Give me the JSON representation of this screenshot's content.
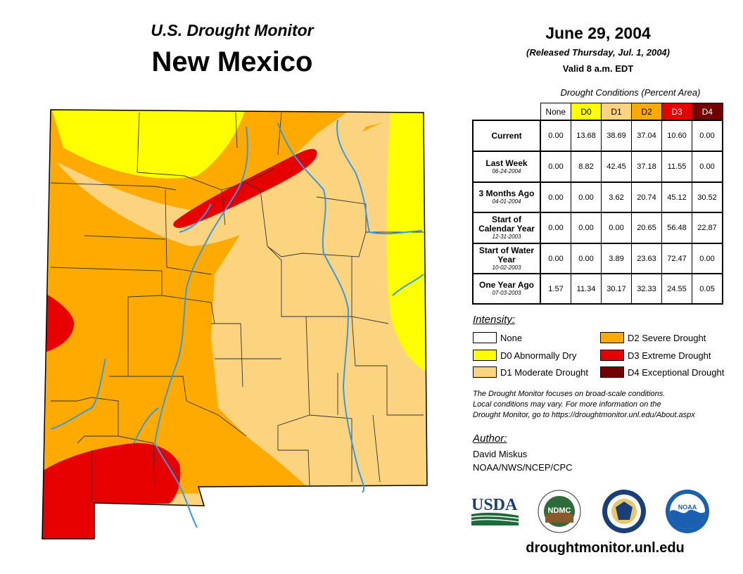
{
  "header": {
    "subtitle": "U.S. Drought Monitor",
    "state": "New Mexico",
    "date": "June 29, 2004",
    "released": "(Released Thursday, Jul. 1, 2004)",
    "valid": "Valid 8 a.m. EDT"
  },
  "table": {
    "caption": "Drought Conditions (Percent Area)",
    "columns": [
      {
        "label": "None",
        "color": "#ffffff",
        "text_color": "#000000"
      },
      {
        "label": "D0",
        "color": "#ffff00",
        "text_color": "#000000"
      },
      {
        "label": "D1",
        "color": "#fcd37f",
        "text_color": "#000000"
      },
      {
        "label": "D2",
        "color": "#ffaa00",
        "text_color": "#000000"
      },
      {
        "label": "D3",
        "color": "#e60000",
        "text_color": "#ffffff"
      },
      {
        "label": "D4",
        "color": "#730000",
        "text_color": "#ffffff"
      }
    ],
    "rows": [
      {
        "label": "Current",
        "date": "",
        "values": [
          "0.00",
          "13.68",
          "38.69",
          "37.04",
          "10.60",
          "0.00"
        ]
      },
      {
        "label": "Last Week",
        "date": "06-24-2004",
        "values": [
          "0.00",
          "8.82",
          "42.45",
          "37.18",
          "11.55",
          "0.00"
        ]
      },
      {
        "label": "3 Months Ago",
        "date": "04-01-2004",
        "values": [
          "0.00",
          "0.00",
          "3.62",
          "20.74",
          "45.12",
          "30.52"
        ]
      },
      {
        "label": "Start of Calendar Year",
        "date": "12-31-2003",
        "values": [
          "0.00",
          "0.00",
          "0.00",
          "20.65",
          "56.48",
          "22.87"
        ]
      },
      {
        "label": "Start of Water Year",
        "date": "10-02-2003",
        "values": [
          "0.00",
          "0.00",
          "3.89",
          "23.63",
          "72.47",
          "0.00"
        ]
      },
      {
        "label": "One Year Ago",
        "date": "07-03-2003",
        "values": [
          "1.57",
          "11.34",
          "30.17",
          "32.33",
          "24.55",
          "0.05"
        ]
      }
    ]
  },
  "legend": {
    "title": "Intensity:",
    "items": [
      {
        "label": "None",
        "color": "#ffffff"
      },
      {
        "label": "D0 Abnormally Dry",
        "color": "#ffff00"
      },
      {
        "label": "D1 Moderate Drought",
        "color": "#fcd37f"
      },
      {
        "label": "D2 Severe Drought",
        "color": "#ffaa00"
      },
      {
        "label": "D3 Extreme Drought",
        "color": "#e60000"
      },
      {
        "label": "D4 Exceptional Drought",
        "color": "#730000"
      }
    ]
  },
  "note": {
    "line1": "The Drought Monitor focuses on broad-scale conditions.",
    "line2": "Local conditions may vary. For more information on the",
    "line3": "Drought Monitor, go to https://droughtmonitor.unl.edu/About.aspx"
  },
  "author": {
    "title": "Author:",
    "name": "David Miskus",
    "org": "NOAA/NWS/NCEP/CPC"
  },
  "logos": {
    "usda": "USDA",
    "ndmc": "NDMC",
    "noaa": "NOAA"
  },
  "website": "droughtmonitor.unl.edu",
  "map_colors": {
    "d0": "#ffff00",
    "d1": "#fcd37f",
    "d2": "#ffaa00",
    "d3": "#e60000",
    "river": "#3399ee",
    "county": "#333333"
  }
}
